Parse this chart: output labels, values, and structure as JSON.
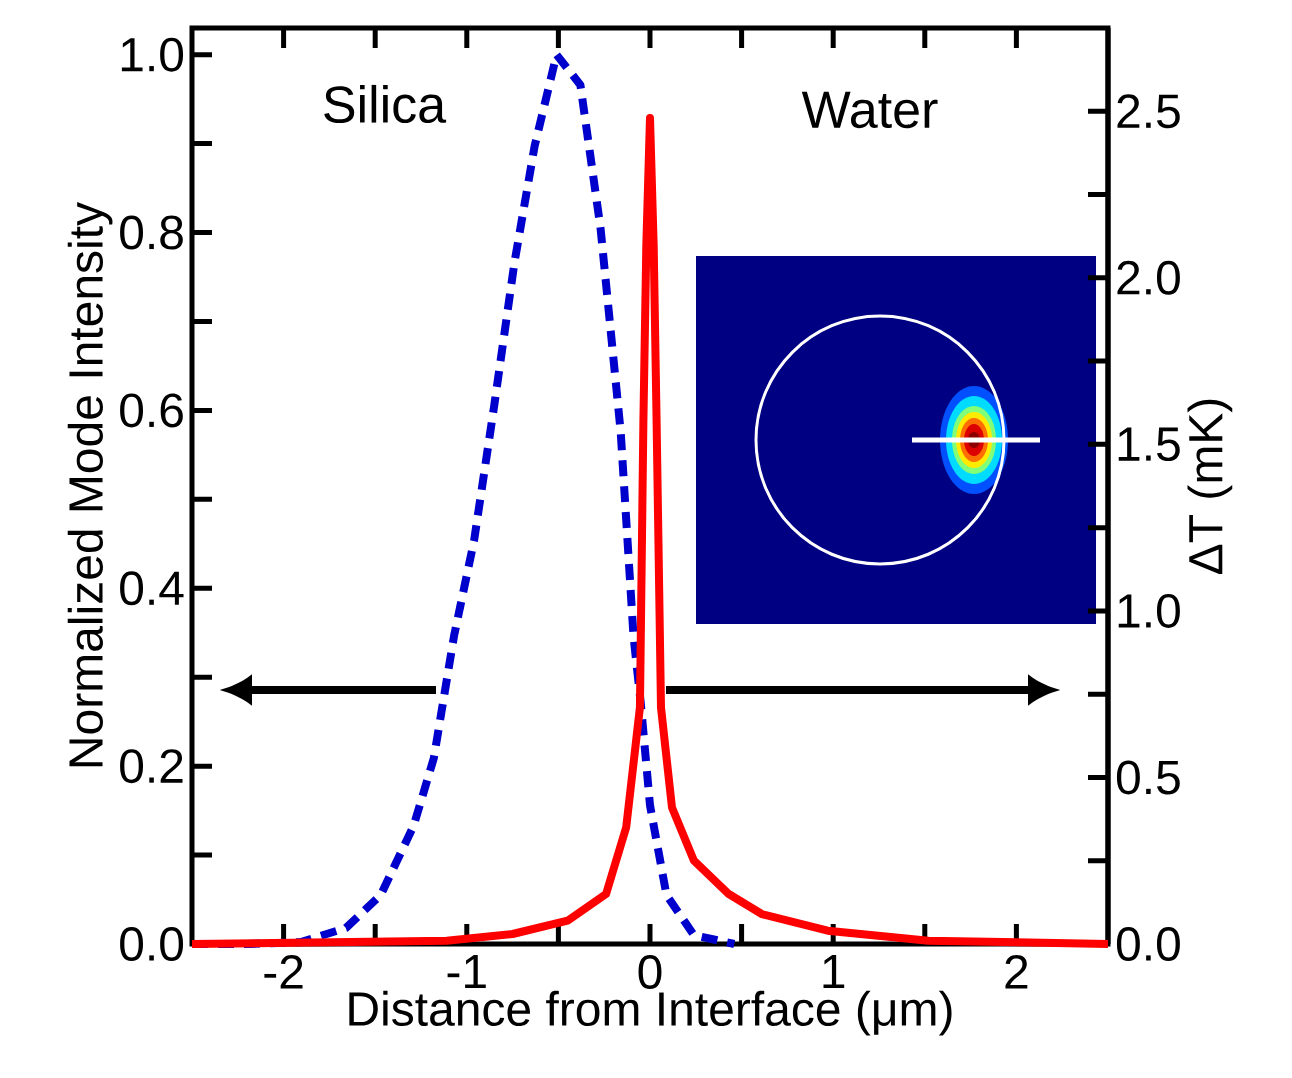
{
  "chart_data": {
    "type": "line",
    "xlabel": "Distance from Interface (μm)",
    "ylabel": "Normalized Mode Intensity",
    "y2label": "ΔT (mK)",
    "annotations": [
      "Silica",
      "Water"
    ],
    "xlim": [
      -2.5,
      2.5
    ],
    "xticks": [
      -2,
      {
        "value": -1.5,
        "label": null
      },
      -1,
      {
        "value": -0.5,
        "label": null
      },
      0,
      {
        "value": 0.5,
        "label": null
      },
      1,
      {
        "value": 1.5,
        "label": null
      },
      2
    ],
    "ylim": [
      0,
      1.03
    ],
    "yticks": [
      {
        "value": 0,
        "label": "0.0"
      },
      {
        "value": 0.1,
        "label": null
      },
      {
        "value": 0.2,
        "label": "0.2"
      },
      {
        "value": 0.3,
        "label": null
      },
      {
        "value": 0.4,
        "label": "0.4"
      },
      {
        "value": 0.5,
        "label": null
      },
      {
        "value": 0.6,
        "label": "0.6"
      },
      {
        "value": 0.7,
        "label": null
      },
      {
        "value": 0.8,
        "label": "0.8"
      },
      {
        "value": 0.9,
        "label": null
      },
      {
        "value": 1.0,
        "label": "1.0"
      }
    ],
    "y2lim": [
      0,
      2.75
    ],
    "y2ticks": [
      {
        "value": 0,
        "label": "0.0"
      },
      {
        "value": 0.25,
        "label": null
      },
      {
        "value": 0.5,
        "label": "0.5"
      },
      {
        "value": 0.75,
        "label": null
      },
      {
        "value": 1.0,
        "label": "1.0"
      },
      {
        "value": 1.25,
        "label": null
      },
      {
        "value": 1.5,
        "label": "1.5"
      },
      {
        "value": 1.75,
        "label": null
      },
      {
        "value": 2.0,
        "label": "2.0"
      },
      {
        "value": 2.25,
        "label": null
      },
      {
        "value": 2.5,
        "label": "2.5"
      }
    ],
    "series": [
      {
        "color": "#0000cc",
        "line_style": "dashed",
        "x": [
          -2.5,
          -2.2,
          -1.91,
          -1.66,
          -1.47,
          -1.29,
          -1.18,
          -1.07,
          -0.96,
          -0.85,
          -0.74,
          -0.63,
          -0.51,
          -0.38,
          -0.27,
          -0.16,
          -0.09,
          -0.05,
          0,
          0.09,
          0.24,
          0.46
        ],
        "values": [
          0,
          0,
          0.002,
          0.018,
          0.055,
          0.133,
          0.209,
          0.346,
          0.454,
          0.606,
          0.766,
          0.897,
          1.0,
          0.966,
          0.805,
          0.576,
          0.346,
          0.27,
          0.156,
          0.055,
          0.01,
          0
        ]
      },
      {
        "color": "#ff0000",
        "line_style": "solid",
        "axis": "y2",
        "x": [
          -2.5,
          -1.11,
          -0.75,
          -0.45,
          -0.24,
          -0.13,
          -0.055,
          -0.036,
          -0.02,
          0,
          0.02,
          0.036,
          0.06,
          0.12,
          0.24,
          0.43,
          0.61,
          0.97,
          1.52,
          2.5
        ],
        "values": [
          0,
          0.01,
          0.03,
          0.07,
          0.15,
          0.35,
          0.71,
          1.57,
          2.1,
          2.48,
          2.1,
          1.57,
          0.71,
          0.41,
          0.25,
          0.15,
          0.09,
          0.04,
          0.01,
          0
        ]
      }
    ]
  }
}
